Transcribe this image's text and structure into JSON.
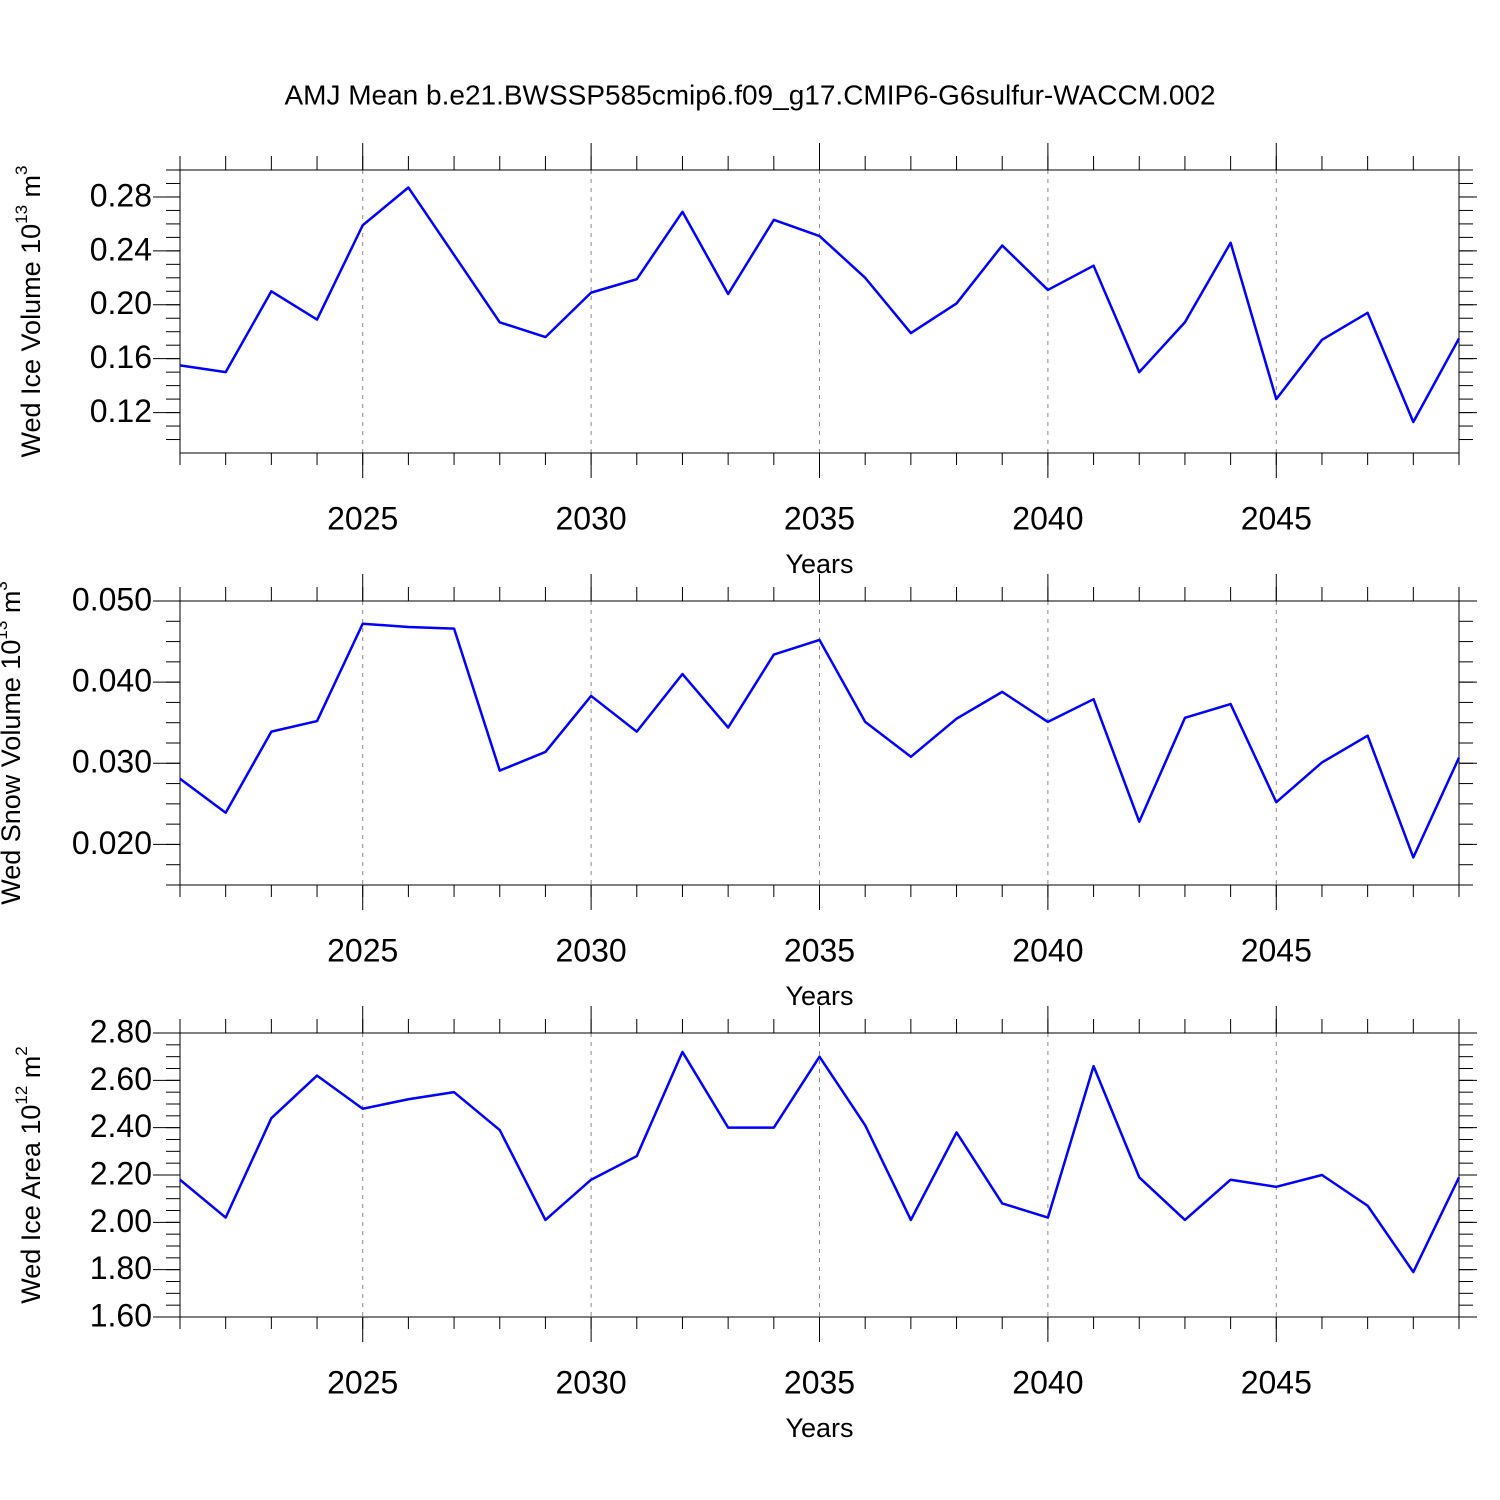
{
  "chart_data": [
    {
      "type": "line",
      "title": "AMJ Mean b.e21.BWSSP585cmip6.f09_g17.CMIP6-G6sulfur-WACCM.002",
      "xlabel": "Years",
      "ylabel": [
        "Wed Ice Volume 10",
        "13",
        " m",
        "3"
      ],
      "x": [
        2021,
        2022,
        2023,
        2024,
        2025,
        2026,
        2027,
        2028,
        2029,
        2030,
        2031,
        2032,
        2033,
        2034,
        2035,
        2036,
        2037,
        2038,
        2039,
        2040,
        2041,
        2042,
        2043,
        2044,
        2045,
        2046,
        2047,
        2048,
        2049
      ],
      "series": [
        {
          "color": "#0000ff",
          "values": [
            0.155,
            0.15,
            0.21,
            0.189,
            0.259,
            0.287,
            0.237,
            0.187,
            0.176,
            0.209,
            0.219,
            0.269,
            0.208,
            0.263,
            0.251,
            0.22,
            0.179,
            0.201,
            0.244,
            0.211,
            0.229,
            0.15,
            0.187,
            0.246,
            0.13,
            0.174,
            0.194,
            0.113,
            0.175
          ]
        }
      ],
      "xlim": [
        2021,
        2049
      ],
      "xticks": [
        2025,
        2030,
        2035,
        2040,
        2045
      ],
      "ylim": [
        0.09,
        0.3
      ],
      "yticks": [
        {
          "value": 0.12,
          "label": "0.12"
        },
        {
          "value": 0.16,
          "label": "0.16"
        },
        {
          "value": 0.2,
          "label": "0.20"
        },
        {
          "value": 0.24,
          "label": "0.24"
        },
        {
          "value": 0.28,
          "label": "0.28"
        }
      ],
      "grid": "x"
    },
    {
      "type": "line",
      "xlabel": "Years",
      "ylabel": [
        "Wed Snow Volume 10",
        "13",
        " m",
        "3"
      ],
      "x": [
        2021,
        2022,
        2023,
        2024,
        2025,
        2026,
        2027,
        2028,
        2029,
        2030,
        2031,
        2032,
        2033,
        2034,
        2035,
        2036,
        2037,
        2038,
        2039,
        2040,
        2041,
        2042,
        2043,
        2044,
        2045,
        2046,
        2047,
        2048,
        2049
      ],
      "series": [
        {
          "color": "#0000ff",
          "values": [
            0.0281,
            0.0239,
            0.0339,
            0.0352,
            0.0472,
            0.0468,
            0.0466,
            0.0291,
            0.0314,
            0.0383,
            0.0339,
            0.041,
            0.0344,
            0.0434,
            0.0452,
            0.0351,
            0.0308,
            0.0355,
            0.0388,
            0.0351,
            0.0379,
            0.0228,
            0.0356,
            0.0373,
            0.0252,
            0.0301,
            0.0334,
            0.0184,
            0.0307
          ]
        }
      ],
      "xlim": [
        2021,
        2049
      ],
      "xticks": [
        2025,
        2030,
        2035,
        2040,
        2045
      ],
      "ylim": [
        0.015,
        0.05
      ],
      "yticks": [
        {
          "value": 0.02,
          "label": "0.020"
        },
        {
          "value": 0.03,
          "label": "0.030"
        },
        {
          "value": 0.04,
          "label": "0.040"
        },
        {
          "value": 0.05,
          "label": "0.050"
        }
      ],
      "grid": "x"
    },
    {
      "type": "line",
      "xlabel": "Years",
      "ylabel": [
        "Wed Ice Area 10",
        "12",
        " m",
        "2"
      ],
      "x": [
        2021,
        2022,
        2023,
        2024,
        2025,
        2026,
        2027,
        2028,
        2029,
        2030,
        2031,
        2032,
        2033,
        2034,
        2035,
        2036,
        2037,
        2038,
        2039,
        2040,
        2041,
        2042,
        2043,
        2044,
        2045,
        2046,
        2047,
        2048,
        2049
      ],
      "series": [
        {
          "color": "#0000ff",
          "values": [
            2.18,
            2.02,
            2.44,
            2.62,
            2.48,
            2.52,
            2.55,
            2.39,
            2.01,
            2.18,
            2.28,
            2.72,
            2.4,
            2.4,
            2.7,
            2.41,
            2.01,
            2.38,
            2.08,
            2.02,
            2.66,
            2.19,
            2.01,
            2.18,
            2.15,
            2.2,
            2.07,
            1.79,
            2.19
          ]
        }
      ],
      "xlim": [
        2021,
        2049
      ],
      "xticks": [
        2025,
        2030,
        2035,
        2040,
        2045
      ],
      "ylim": [
        1.6,
        2.8
      ],
      "yticks": [
        {
          "value": 1.6,
          "label": "1.60"
        },
        {
          "value": 1.8,
          "label": "1.80"
        },
        {
          "value": 2.0,
          "label": "2.00"
        },
        {
          "value": 2.2,
          "label": "2.20"
        },
        {
          "value": 2.4,
          "label": "2.40"
        },
        {
          "value": 2.6,
          "label": "2.60"
        },
        {
          "value": 2.8,
          "label": "2.80"
        }
      ],
      "grid": "x"
    }
  ]
}
